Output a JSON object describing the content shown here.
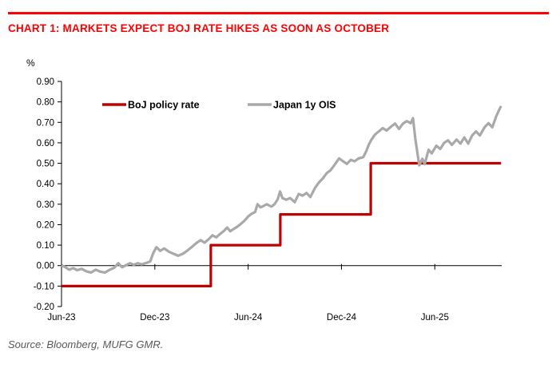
{
  "title": "CHART 1: MARKETS EXPECT BOJ RATE HIKES AS SOON AS OCTOBER",
  "source": "Source: Bloomberg, MUFG GMR.",
  "colors": {
    "title_red": "#ff0000",
    "rule_red": "#ff0000",
    "boj_red": "#c00000",
    "ois_gray": "#a9a9a9",
    "axis_black": "#000000",
    "source_gray": "#595959"
  },
  "chart_data": {
    "type": "line",
    "title": "CHART 1: MARKETS EXPECT BOJ RATE HIKES AS SOON AS OCTOBER",
    "unit_label": "%",
    "ylim": [
      -0.2,
      0.9
    ],
    "y_tick_step": 0.1,
    "y_ticks": [
      {
        "value": 0.9,
        "label": "0.90"
      },
      {
        "value": 0.8,
        "label": "0.80"
      },
      {
        "value": 0.7,
        "label": "0.70"
      },
      {
        "value": 0.6,
        "label": "0.60"
      },
      {
        "value": 0.5,
        "label": "0.50"
      },
      {
        "value": 0.4,
        "label": "0.40"
      },
      {
        "value": 0.3,
        "label": "0.30"
      },
      {
        "value": 0.2,
        "label": "0.20"
      },
      {
        "value": 0.1,
        "label": "0.10"
      },
      {
        "value": 0.0,
        "label": "0.00"
      },
      {
        "value": -0.1,
        "label": "-0.10"
      },
      {
        "value": -0.2,
        "label": "-0.20"
      }
    ],
    "x_axis_months_range": [
      0,
      28.3
    ],
    "x_ticks": [
      {
        "month": 0,
        "label": "Jun-23"
      },
      {
        "month": 6,
        "label": "Dec-23"
      },
      {
        "month": 12,
        "label": "Jun-24"
      },
      {
        "month": 18,
        "label": "Dec-24"
      },
      {
        "month": 24,
        "label": "Jun-25"
      }
    ],
    "grid": false,
    "legend_position": "top-inside",
    "series": [
      {
        "name": "BoJ policy rate",
        "color": "#c00000",
        "width": 3.2,
        "points": [
          [
            0,
            -0.1
          ],
          [
            9.6,
            -0.1
          ],
          [
            9.6,
            0.1
          ],
          [
            14.07,
            0.1
          ],
          [
            14.07,
            0.25
          ],
          [
            19.88,
            0.25
          ],
          [
            19.88,
            0.5
          ],
          [
            28.26,
            0.5
          ]
        ]
      },
      {
        "name": "Japan 1y OIS",
        "color": "#a9a9a9",
        "width": 3.2,
        "points": [
          [
            0,
            0.002
          ],
          [
            0.25,
            -0.008
          ],
          [
            0.5,
            -0.02
          ],
          [
            0.75,
            -0.012
          ],
          [
            1.0,
            -0.022
          ],
          [
            1.3,
            -0.016
          ],
          [
            1.6,
            -0.028
          ],
          [
            1.9,
            -0.034
          ],
          [
            2.2,
            -0.02
          ],
          [
            2.5,
            -0.03
          ],
          [
            2.8,
            -0.034
          ],
          [
            3.1,
            -0.02
          ],
          [
            3.4,
            -0.01
          ],
          [
            3.65,
            0.012
          ],
          [
            3.9,
            -0.008
          ],
          [
            4.15,
            0.002
          ],
          [
            4.4,
            0.012
          ],
          [
            4.65,
            0.004
          ],
          [
            4.9,
            0.012
          ],
          [
            5.15,
            0.006
          ],
          [
            5.4,
            0.012
          ],
          [
            5.7,
            0.02
          ],
          [
            5.9,
            0.062
          ],
          [
            6.1,
            0.09
          ],
          [
            6.35,
            0.072
          ],
          [
            6.6,
            0.084
          ],
          [
            6.9,
            0.068
          ],
          [
            7.2,
            0.058
          ],
          [
            7.5,
            0.048
          ],
          [
            7.8,
            0.058
          ],
          [
            8.1,
            0.074
          ],
          [
            8.4,
            0.092
          ],
          [
            8.7,
            0.112
          ],
          [
            8.95,
            0.124
          ],
          [
            9.2,
            0.112
          ],
          [
            9.45,
            0.128
          ],
          [
            9.7,
            0.148
          ],
          [
            9.95,
            0.138
          ],
          [
            10.2,
            0.155
          ],
          [
            10.45,
            0.17
          ],
          [
            10.65,
            0.186
          ],
          [
            10.85,
            0.168
          ],
          [
            11.05,
            0.178
          ],
          [
            11.3,
            0.19
          ],
          [
            11.55,
            0.205
          ],
          [
            11.8,
            0.222
          ],
          [
            12.0,
            0.24
          ],
          [
            12.2,
            0.252
          ],
          [
            12.45,
            0.262
          ],
          [
            12.6,
            0.3
          ],
          [
            12.8,
            0.285
          ],
          [
            13.0,
            0.292
          ],
          [
            13.2,
            0.3
          ],
          [
            13.5,
            0.288
          ],
          [
            13.7,
            0.3
          ],
          [
            13.9,
            0.324
          ],
          [
            14.05,
            0.362
          ],
          [
            14.2,
            0.33
          ],
          [
            14.45,
            0.322
          ],
          [
            14.7,
            0.33
          ],
          [
            15.0,
            0.31
          ],
          [
            15.25,
            0.35
          ],
          [
            15.5,
            0.342
          ],
          [
            15.75,
            0.355
          ],
          [
            16.0,
            0.335
          ],
          [
            16.3,
            0.38
          ],
          [
            16.55,
            0.406
          ],
          [
            16.8,
            0.426
          ],
          [
            17.05,
            0.452
          ],
          [
            17.3,
            0.466
          ],
          [
            17.6,
            0.497
          ],
          [
            17.85,
            0.524
          ],
          [
            18.1,
            0.51
          ],
          [
            18.35,
            0.497
          ],
          [
            18.6,
            0.517
          ],
          [
            18.85,
            0.51
          ],
          [
            19.1,
            0.524
          ],
          [
            19.4,
            0.53
          ],
          [
            19.6,
            0.56
          ],
          [
            19.75,
            0.59
          ],
          [
            19.9,
            0.612
          ],
          [
            20.15,
            0.64
          ],
          [
            20.65,
            0.672
          ],
          [
            20.9,
            0.66
          ],
          [
            21.2,
            0.68
          ],
          [
            21.45,
            0.694
          ],
          [
            21.7,
            0.668
          ],
          [
            21.95,
            0.694
          ],
          [
            22.2,
            0.706
          ],
          [
            22.45,
            0.696
          ],
          [
            22.6,
            0.72
          ],
          [
            22.75,
            0.62
          ],
          [
            23.0,
            0.49
          ],
          [
            23.2,
            0.522
          ],
          [
            23.35,
            0.496
          ],
          [
            23.6,
            0.566
          ],
          [
            23.8,
            0.548
          ],
          [
            24.1,
            0.586
          ],
          [
            24.35,
            0.57
          ],
          [
            24.6,
            0.6
          ],
          [
            24.85,
            0.612
          ],
          [
            25.1,
            0.59
          ],
          [
            25.4,
            0.616
          ],
          [
            25.65,
            0.596
          ],
          [
            25.9,
            0.626
          ],
          [
            26.15,
            0.596
          ],
          [
            26.4,
            0.636
          ],
          [
            26.65,
            0.656
          ],
          [
            26.9,
            0.636
          ],
          [
            27.2,
            0.676
          ],
          [
            27.45,
            0.696
          ],
          [
            27.7,
            0.676
          ],
          [
            27.95,
            0.73
          ],
          [
            28.1,
            0.755
          ],
          [
            28.26,
            0.78
          ]
        ]
      }
    ]
  }
}
